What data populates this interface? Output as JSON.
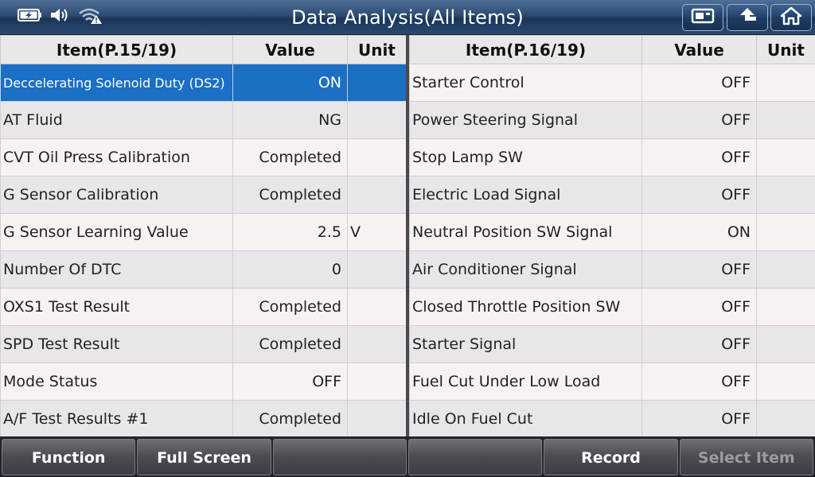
{
  "header": {
    "title": "Data Analysis(All Items)"
  },
  "left_table": {
    "headers": {
      "item": "Item(P.15/19)",
      "value": "Value",
      "unit": "Unit"
    },
    "rows": [
      {
        "item": "Deccelerating Solenoid Duty (DS2)",
        "value": "ON",
        "unit": ""
      },
      {
        "item": "AT Fluid",
        "value": "NG",
        "unit": ""
      },
      {
        "item": "CVT Oil Press Calibration",
        "value": "Completed",
        "unit": ""
      },
      {
        "item": "G Sensor Calibration",
        "value": "Completed",
        "unit": ""
      },
      {
        "item": "G Sensor Learning Value",
        "value": "2.5",
        "unit": "V"
      },
      {
        "item": "Number Of DTC",
        "value": "0",
        "unit": ""
      },
      {
        "item": "OXS1 Test Result",
        "value": "Completed",
        "unit": ""
      },
      {
        "item": "SPD Test Result",
        "value": "Completed",
        "unit": ""
      },
      {
        "item": "Mode Status",
        "value": "OFF",
        "unit": ""
      },
      {
        "item": "A/F Test Results #1",
        "value": "Completed",
        "unit": ""
      }
    ]
  },
  "right_table": {
    "headers": {
      "item": "Item(P.16/19)",
      "value": "Value",
      "unit": "Unit"
    },
    "rows": [
      {
        "item": "Starter Control",
        "value": "OFF",
        "unit": ""
      },
      {
        "item": "Power Steering Signal",
        "value": "OFF",
        "unit": ""
      },
      {
        "item": "Stop Lamp SW",
        "value": "OFF",
        "unit": ""
      },
      {
        "item": "Electric Load Signal",
        "value": "OFF",
        "unit": ""
      },
      {
        "item": "Neutral Position SW Signal",
        "value": "ON",
        "unit": ""
      },
      {
        "item": "Air Conditioner Signal",
        "value": "OFF",
        "unit": ""
      },
      {
        "item": "Closed Throttle Position SW",
        "value": "OFF",
        "unit": ""
      },
      {
        "item": "Starter Signal",
        "value": "OFF",
        "unit": ""
      },
      {
        "item": "Fuel Cut Under Low Load",
        "value": "OFF",
        "unit": ""
      },
      {
        "item": "Idle On Fuel Cut",
        "value": "OFF",
        "unit": ""
      }
    ]
  },
  "toolbar": {
    "buttons": [
      {
        "label": "Function",
        "enabled": true
      },
      {
        "label": "Full Screen",
        "enabled": true
      },
      {
        "label": "",
        "enabled": true
      },
      {
        "label": "",
        "enabled": true
      },
      {
        "label": "Record",
        "enabled": true
      },
      {
        "label": "Select Item",
        "enabled": false
      }
    ]
  },
  "icons": {
    "status": [
      "battery-charging-icon",
      "speaker-icon",
      "wifi-warning-icon"
    ],
    "top_buttons": [
      "screenshot-icon",
      "back-icon",
      "home-icon"
    ]
  },
  "colors": {
    "selected_row": "#1b6fc4",
    "header_bar": "#2c4b73"
  }
}
